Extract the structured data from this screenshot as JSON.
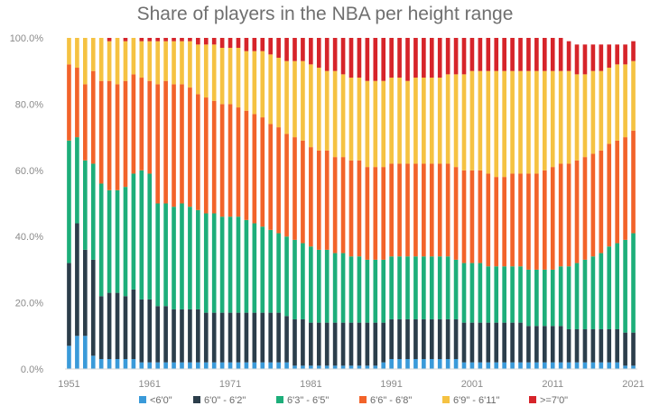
{
  "chart_data": {
    "type": "bar",
    "stacked": true,
    "title": "Share of players in the NBA per height range",
    "xlabel": "",
    "ylabel": "",
    "ylim": [
      0,
      100
    ],
    "y_ticks": [
      "0.0%",
      "20.0%",
      "40.0%",
      "60.0%",
      "80.0%",
      "100.0%"
    ],
    "x_tick_labels": [
      "1951",
      "1961",
      "1971",
      "1981",
      "1991",
      "2001",
      "2011",
      "2021"
    ],
    "grid": false,
    "legend_position": "bottom",
    "categories": [
      "1951",
      "1952",
      "1953",
      "1954",
      "1955",
      "1956",
      "1957",
      "1958",
      "1959",
      "1960",
      "1961",
      "1962",
      "1963",
      "1964",
      "1965",
      "1966",
      "1967",
      "1968",
      "1969",
      "1970",
      "1971",
      "1972",
      "1973",
      "1974",
      "1975",
      "1976",
      "1977",
      "1978",
      "1979",
      "1980",
      "1981",
      "1982",
      "1983",
      "1984",
      "1985",
      "1986",
      "1987",
      "1988",
      "1989",
      "1990",
      "1991",
      "1992",
      "1993",
      "1994",
      "1995",
      "1996",
      "1997",
      "1998",
      "1999",
      "2000",
      "2001",
      "2002",
      "2003",
      "2004",
      "2005",
      "2006",
      "2007",
      "2008",
      "2009",
      "2010",
      "2011",
      "2012",
      "2013",
      "2014",
      "2015",
      "2016",
      "2017",
      "2018",
      "2019",
      "2020",
      "2021"
    ],
    "series": [
      {
        "name": "<6'0\"",
        "color": "#3a9ad9",
        "values": [
          7,
          10,
          10,
          4,
          3,
          3,
          3,
          3,
          3,
          2,
          2,
          2,
          2,
          2,
          2,
          2,
          2,
          2,
          2,
          2,
          2,
          2,
          2,
          2,
          2,
          2,
          2,
          2,
          1,
          1,
          1,
          1,
          1,
          1,
          1,
          1,
          1,
          1,
          1,
          2,
          3,
          3,
          3,
          3,
          3,
          3,
          3,
          3,
          3,
          2,
          2,
          2,
          2,
          2,
          2,
          2,
          2,
          2,
          2,
          2,
          2,
          2,
          2,
          2,
          2,
          2,
          2,
          2,
          2,
          1,
          1
        ]
      },
      {
        "name": "6'0\" - 6'2\"",
        "color": "#2c3e4b",
        "values": [
          25,
          34,
          26,
          29,
          19,
          20,
          20,
          19,
          21,
          19,
          19,
          17,
          17,
          16,
          16,
          16,
          16,
          15,
          15,
          15,
          15,
          15,
          15,
          15,
          15,
          15,
          15,
          14,
          14,
          14,
          13,
          13,
          13,
          13,
          13,
          13,
          13,
          13,
          13,
          12,
          12,
          12,
          12,
          12,
          12,
          12,
          12,
          12,
          12,
          12,
          12,
          12,
          12,
          12,
          12,
          12,
          12,
          11,
          11,
          11,
          11,
          11,
          10,
          10,
          10,
          10,
          10,
          10,
          10,
          10,
          10
        ]
      },
      {
        "name": "6'3\" - 6'5\"",
        "color": "#1dae7a",
        "values": [
          37,
          26,
          27,
          29,
          34,
          31,
          31,
          33,
          35,
          39,
          38,
          31,
          31,
          31,
          32,
          31,
          30,
          30,
          30,
          29,
          29,
          29,
          28,
          27,
          26,
          25,
          24,
          24,
          24,
          23,
          23,
          22,
          22,
          21,
          21,
          20,
          20,
          19,
          19,
          19,
          19,
          19,
          19,
          19,
          19,
          19,
          19,
          19,
          18,
          18,
          18,
          18,
          17,
          17,
          17,
          17,
          17,
          17,
          17,
          17,
          17,
          18,
          19,
          20,
          21,
          22,
          23,
          25,
          26,
          28,
          30
        ]
      },
      {
        "name": "6'6\" - 6'8\"",
        "color": "#f2632a",
        "values": [
          23,
          21,
          23,
          28,
          31,
          33,
          32,
          32,
          30,
          28,
          28,
          36,
          37,
          37,
          36,
          36,
          35,
          35,
          34,
          34,
          34,
          33,
          33,
          33,
          33,
          32,
          32,
          31,
          31,
          31,
          30,
          30,
          30,
          29,
          29,
          29,
          29,
          28,
          28,
          28,
          28,
          28,
          28,
          28,
          28,
          28,
          28,
          28,
          28,
          28,
          28,
          28,
          28,
          27,
          27,
          28,
          28,
          29,
          29,
          30,
          31,
          31,
          31,
          31,
          31,
          31,
          31,
          31,
          31,
          31,
          31
        ]
      },
      {
        "name": "6'9\" - 6'11\"",
        "color": "#f5c242",
        "values": [
          8,
          9,
          14,
          10,
          13,
          12,
          14,
          12,
          11,
          11,
          12,
          13,
          12,
          13,
          13,
          14,
          15,
          16,
          17,
          17,
          17,
          18,
          18,
          19,
          20,
          21,
          21,
          22,
          23,
          24,
          25,
          25,
          24,
          26,
          25,
          25,
          25,
          26,
          26,
          26,
          26,
          26,
          25,
          26,
          26,
          26,
          26,
          27,
          28,
          29,
          30,
          30,
          31,
          32,
          32,
          31,
          31,
          31,
          31,
          30,
          29,
          28,
          28,
          26,
          25,
          25,
          24,
          23,
          23,
          22,
          21
        ]
      },
      {
        "name": ">=7'0\"",
        "color": "#d6242a",
        "values": [
          0,
          0,
          0,
          0,
          0,
          1,
          0,
          1,
          0,
          1,
          1,
          1,
          1,
          1,
          1,
          1,
          2,
          2,
          2,
          3,
          3,
          3,
          4,
          4,
          4,
          5,
          6,
          7,
          7,
          7,
          8,
          9,
          10,
          10,
          11,
          12,
          12,
          13,
          13,
          13,
          12,
          12,
          13,
          12,
          12,
          12,
          12,
          11,
          11,
          11,
          10,
          10,
          10,
          10,
          10,
          10,
          10,
          10,
          10,
          10,
          10,
          10,
          9,
          9,
          9,
          8,
          8,
          7,
          6,
          6,
          6
        ]
      }
    ]
  }
}
